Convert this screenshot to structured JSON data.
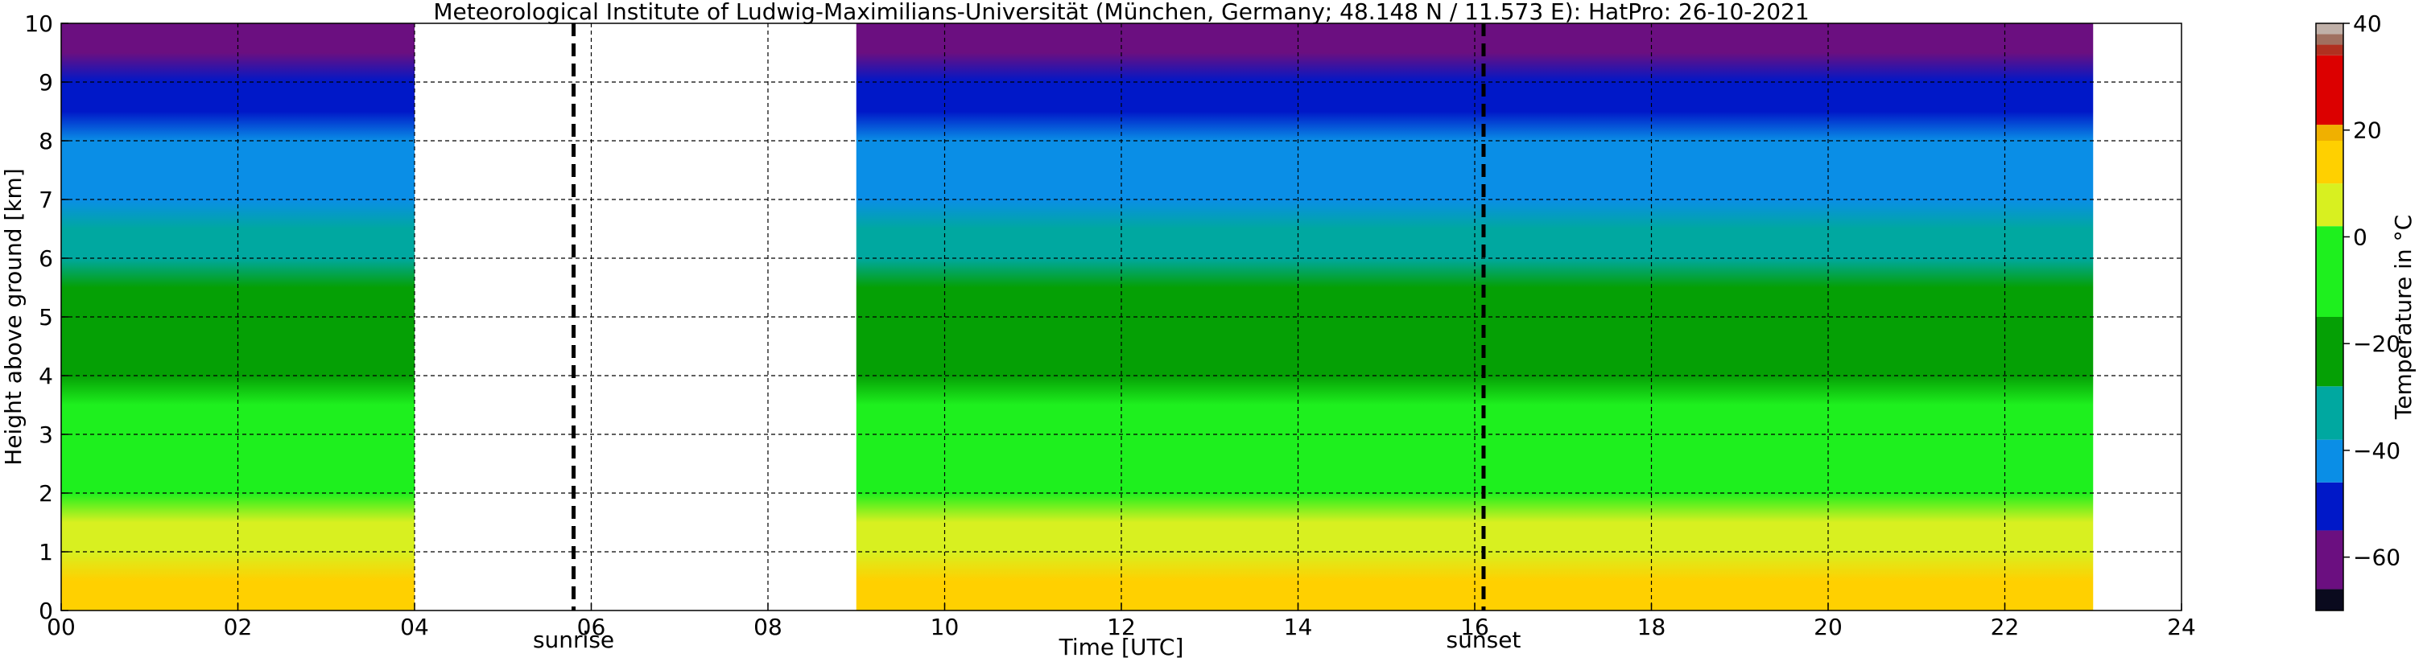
{
  "chart_data": {
    "type": "heatmap",
    "title": "Meteorological Institute of Ludwig-Maximilians-Universität (München, Germany; 48.148 N / 11.573 E):    HatPro: 26-10-2021",
    "xlabel": "Time [UTC]",
    "ylabel": "Height above ground [km]",
    "xlim": [
      0,
      24
    ],
    "ylim": [
      0,
      10
    ],
    "x_ticks": [
      "00",
      "02",
      "04",
      "06",
      "08",
      "10",
      "12",
      "14",
      "16",
      "18",
      "20",
      "22",
      "24"
    ],
    "y_ticks": [
      "0",
      "1",
      "2",
      "3",
      "4",
      "5",
      "6",
      "7",
      "8",
      "9",
      "10"
    ],
    "grid": true,
    "data_segments": [
      {
        "start": 0.0,
        "end": 4.0
      },
      {
        "start": 9.0,
        "end": 23.0
      }
    ],
    "events": [
      {
        "label": "sunrise",
        "time": 5.8
      },
      {
        "label": "sunset",
        "time": 16.1
      }
    ],
    "temperature_profile": {
      "unit": "°C",
      "height_km": [
        0,
        0.5,
        1,
        1.5,
        2,
        2.5,
        3,
        3.5,
        4,
        4.5,
        5,
        5.5,
        6,
        6.5,
        7,
        7.5,
        8,
        8.5,
        9,
        9.5,
        10
      ],
      "temperature": [
        13,
        10,
        6,
        2,
        -1,
        -5,
        -8,
        -12,
        -16,
        -20,
        -23,
        -26,
        -32,
        -36,
        -40,
        -43,
        -46,
        -49,
        -53,
        -56,
        -58
      ]
    },
    "colorbar": {
      "label": "Temperature in °C",
      "vmin": -70,
      "vmax": 40,
      "ticks": [
        "40",
        "20",
        "0",
        "−20",
        "−40",
        "−60"
      ],
      "tick_values": [
        40,
        20,
        0,
        -20,
        -40,
        -60
      ],
      "stops": [
        {
          "from": -70,
          "to": -66,
          "color": "#0a0a1e"
        },
        {
          "from": -66,
          "to": -55,
          "color": "#6b0f80"
        },
        {
          "from": -55,
          "to": -46,
          "color": "#0018c8"
        },
        {
          "from": -46,
          "to": -38,
          "color": "#0a8ee6"
        },
        {
          "from": -38,
          "to": -28,
          "color": "#00a8a0"
        },
        {
          "from": -28,
          "to": -15,
          "color": "#05a005"
        },
        {
          "from": -15,
          "to": 2,
          "color": "#1ef01e"
        },
        {
          "from": 2,
          "to": 10,
          "color": "#d8f020"
        },
        {
          "from": 10,
          "to": 18,
          "color": "#ffd000"
        },
        {
          "from": 18,
          "to": 21,
          "color": "#f0b000"
        },
        {
          "from": 21,
          "to": 34,
          "color": "#dc0000"
        },
        {
          "from": 34,
          "to": 36,
          "color": "#b03020"
        },
        {
          "from": 36,
          "to": 38,
          "color": "#a07060"
        },
        {
          "from": 38,
          "to": 40,
          "color": "#c0b0a8"
        }
      ]
    }
  }
}
